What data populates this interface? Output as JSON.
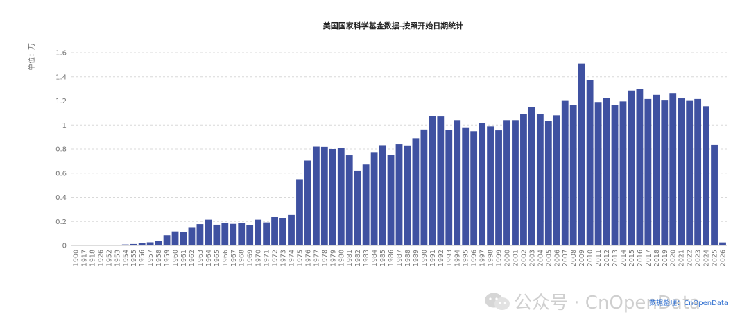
{
  "chart_data": {
    "type": "bar",
    "title": "美国国家科学基金数据-按照开始日期统计",
    "ylabel": "单位：万",
    "ylim": [
      0,
      1.6
    ],
    "yticks": [
      0,
      0.2,
      0.4,
      0.6,
      0.8,
      1,
      1.2,
      1.4,
      1.6
    ],
    "ytick_labels": [
      "0",
      "0.2",
      "0.4",
      "0.6",
      "0.8",
      "1",
      "1.2",
      "1.4",
      "1.6"
    ],
    "grid": true,
    "bar_color": "#3f51a1",
    "categories": [
      "1900",
      "1917",
      "1918",
      "1926",
      "1952",
      "1953",
      "1954",
      "1955",
      "1956",
      "1957",
      "1958",
      "1959",
      "1960",
      "1961",
      "1962",
      "1963",
      "1964",
      "1965",
      "1966",
      "1967",
      "1968",
      "1969",
      "1970",
      "1971",
      "1972",
      "1973",
      "1974",
      "1975",
      "1976",
      "1977",
      "1978",
      "1979",
      "1980",
      "1981",
      "1982",
      "1983",
      "1984",
      "1985",
      "1986",
      "1987",
      "1988",
      "1989",
      "1990",
      "1991",
      "1992",
      "1993",
      "1994",
      "1995",
      "1996",
      "1997",
      "1998",
      "1999",
      "2000",
      "2001",
      "2002",
      "2003",
      "2004",
      "2005",
      "2006",
      "2007",
      "2008",
      "2009",
      "2010",
      "2011",
      "2012",
      "2013",
      "2014",
      "2015",
      "2016",
      "2017",
      "2018",
      "2019",
      "2020",
      "2021",
      "2022",
      "2023",
      "2024",
      "2025",
      "2026"
    ],
    "values": [
      0.003,
      0.0005,
      0.0005,
      0.0005,
      0.002,
      0.002,
      0.008,
      0.012,
      0.018,
      0.026,
      0.036,
      0.085,
      0.117,
      0.113,
      0.147,
      0.178,
      0.215,
      0.173,
      0.19,
      0.18,
      0.186,
      0.172,
      0.215,
      0.192,
      0.236,
      0.225,
      0.254,
      0.55,
      0.705,
      0.82,
      0.818,
      0.8,
      0.808,
      0.748,
      0.622,
      0.672,
      0.775,
      0.832,
      0.752,
      0.84,
      0.83,
      0.89,
      0.962,
      1.072,
      1.07,
      0.96,
      1.04,
      0.98,
      0.948,
      1.015,
      0.988,
      0.955,
      1.04,
      1.04,
      1.09,
      1.15,
      1.09,
      1.035,
      1.08,
      1.205,
      1.165,
      1.51,
      1.375,
      1.19,
      1.225,
      1.165,
      1.195,
      1.285,
      1.295,
      1.215,
      1.25,
      1.208,
      1.265,
      1.22,
      1.205,
      1.215,
      1.155,
      0.835,
      0.025
    ]
  },
  "watermark": {
    "text": "公众号 · CnOpenData",
    "icon": "wechat-icon"
  },
  "source": {
    "text": "数据整理：CnOpenData"
  }
}
